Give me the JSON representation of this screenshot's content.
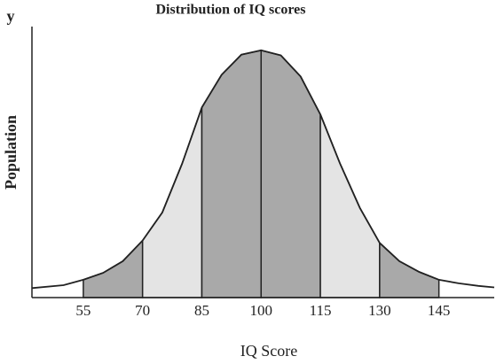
{
  "chart_data": {
    "type": "area",
    "title": "Distribution of IQ scores",
    "y_axis_letter": "y",
    "y_label": "Population",
    "x_label": "IQ Score",
    "x": [
      42,
      50,
      55,
      60,
      65,
      70,
      75,
      80,
      85,
      90,
      95,
      100,
      105,
      110,
      115,
      120,
      125,
      130,
      135,
      140,
      145,
      150,
      155,
      159
    ],
    "values": [
      0.0,
      0.012,
      0.035,
      0.064,
      0.113,
      0.2,
      0.318,
      0.523,
      0.76,
      0.897,
      0.982,
      1.0,
      0.979,
      0.89,
      0.73,
      0.523,
      0.337,
      0.19,
      0.113,
      0.068,
      0.035,
      0.02,
      0.009,
      0.003
    ],
    "color": "#222222",
    "bands": [
      {
        "from": 55,
        "to": 70,
        "color": "#a9a9a9"
      },
      {
        "from": 70,
        "to": 85,
        "color": "#e4e4e4"
      },
      {
        "from": 85,
        "to": 100,
        "color": "#a9a9a9"
      },
      {
        "from": 100,
        "to": 115,
        "color": "#a9a9a9"
      },
      {
        "from": 115,
        "to": 130,
        "color": "#e4e4e4"
      },
      {
        "from": 130,
        "to": 145,
        "color": "#a9a9a9"
      }
    ],
    "xlim": [
      42,
      159
    ],
    "ylim": [
      -0.04,
      1.1
    ],
    "xticks": [
      55,
      70,
      85,
      100,
      115,
      130,
      145
    ]
  }
}
